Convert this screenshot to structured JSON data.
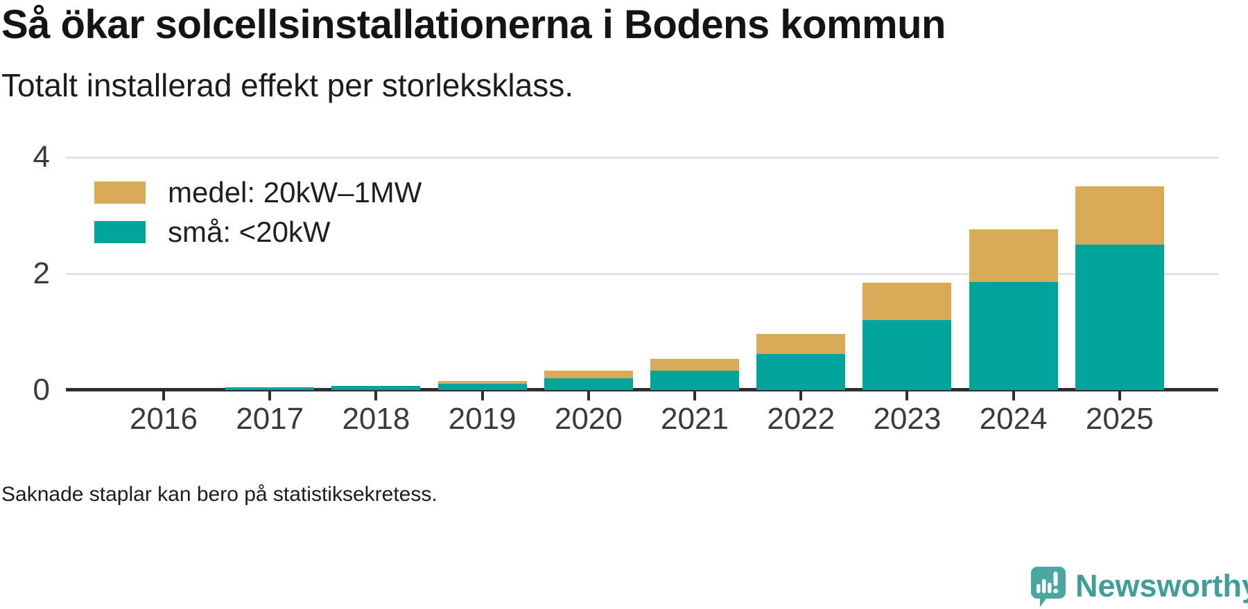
{
  "header": {
    "title": "Så ökar solcellsinstallationerna i Bodens kommun",
    "subtitle": "Totalt installerad effekt per storleksklass."
  },
  "footer": {
    "note": "Saknade staplar kan bero på statistiksekretess.",
    "brand": "Newsworthy"
  },
  "colors": {
    "medel": "#d9ab57",
    "sma": "#00a49b",
    "axis": "#2f2f2f",
    "grid": "#e2e2e2",
    "brand_teal": "#4aa69e"
  },
  "chart_data": {
    "type": "bar",
    "stacked": true,
    "title": "Så ökar solcellsinstallationerna i Bodens kommun",
    "subtitle": "Totalt installerad effekt per storleksklass.",
    "categories": [
      "2016",
      "2017",
      "2018",
      "2019",
      "2020",
      "2021",
      "2022",
      "2023",
      "2024",
      "2025"
    ],
    "series": [
      {
        "name": "medel: 20kW–1MW",
        "color": "#d9ab57",
        "values": [
          null,
          0,
          0,
          0.04,
          0.13,
          0.2,
          0.34,
          0.65,
          0.9,
          1.0
        ]
      },
      {
        "name": "små: <20kW",
        "color": "#00a49b",
        "values": [
          null,
          0.05,
          0.07,
          0.11,
          0.2,
          0.33,
          0.62,
          1.2,
          1.86,
          2.5
        ]
      }
    ],
    "ylim": [
      0,
      4
    ],
    "yticks": [
      0,
      2,
      4
    ],
    "grid": "horizontal-light",
    "legend_position": "top-left-inside",
    "missing_categories": [
      "2016"
    ]
  }
}
